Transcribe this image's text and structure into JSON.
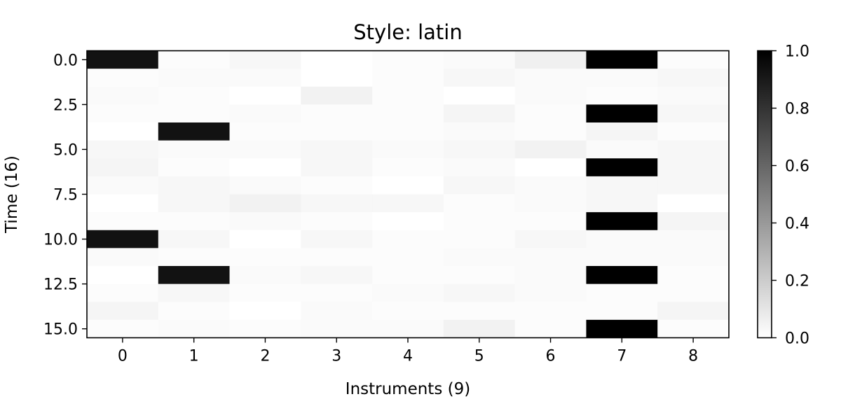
{
  "chart_data": {
    "type": "heatmap",
    "title": "Style: latin",
    "xlabel": "Instruments (9)",
    "ylabel": "Time (16)",
    "x_ticks": [
      "0",
      "1",
      "2",
      "3",
      "4",
      "5",
      "6",
      "7",
      "8"
    ],
    "y_ticks": [
      "0.0",
      "2.5",
      "5.0",
      "7.5",
      "10.0",
      "12.5",
      "15.0"
    ],
    "y_tick_values": [
      0,
      2.5,
      5,
      7.5,
      10,
      12.5,
      15
    ],
    "colorbar": {
      "cmap": "gray_r",
      "vmin": 0.0,
      "vmax": 1.0,
      "ticks": [
        "0.0",
        "0.2",
        "0.4",
        "0.6",
        "0.8",
        "1.0"
      ],
      "tick_values": [
        0,
        0.2,
        0.4,
        0.6,
        0.8,
        1.0
      ]
    },
    "rows": 16,
    "cols": 9,
    "values": [
      [
        0.93,
        0.01,
        0.03,
        0.0,
        0.01,
        0.02,
        0.06,
        1.0,
        0.01
      ],
      [
        0.01,
        0.02,
        0.02,
        0.0,
        0.01,
        0.03,
        0.02,
        0.02,
        0.03
      ],
      [
        0.02,
        0.01,
        0.0,
        0.05,
        0.01,
        0.0,
        0.02,
        0.01,
        0.02
      ],
      [
        0.01,
        0.01,
        0.02,
        0.01,
        0.01,
        0.04,
        0.01,
        1.0,
        0.03
      ],
      [
        0.0,
        0.93,
        0.01,
        0.01,
        0.01,
        0.02,
        0.01,
        0.04,
        0.01
      ],
      [
        0.03,
        0.02,
        0.02,
        0.03,
        0.02,
        0.03,
        0.05,
        0.02,
        0.03
      ],
      [
        0.04,
        0.01,
        0.0,
        0.03,
        0.01,
        0.02,
        0.0,
        1.0,
        0.03
      ],
      [
        0.02,
        0.03,
        0.02,
        0.01,
        0.0,
        0.03,
        0.02,
        0.03,
        0.03
      ],
      [
        0.0,
        0.03,
        0.05,
        0.03,
        0.03,
        0.01,
        0.02,
        0.03,
        0.0
      ],
      [
        0.01,
        0.01,
        0.02,
        0.01,
        0.0,
        0.01,
        0.01,
        1.0,
        0.04
      ],
      [
        0.93,
        0.03,
        0.0,
        0.03,
        0.01,
        0.01,
        0.03,
        0.02,
        0.02
      ],
      [
        0.02,
        0.01,
        0.01,
        0.01,
        0.01,
        0.02,
        0.02,
        0.02,
        0.02
      ],
      [
        0.0,
        0.93,
        0.02,
        0.03,
        0.01,
        0.01,
        0.02,
        1.0,
        0.01
      ],
      [
        0.01,
        0.03,
        0.01,
        0.01,
        0.02,
        0.03,
        0.02,
        0.01,
        0.01
      ],
      [
        0.04,
        0.01,
        0.0,
        0.02,
        0.01,
        0.01,
        0.01,
        0.01,
        0.04
      ],
      [
        0.01,
        0.02,
        0.01,
        0.02,
        0.02,
        0.05,
        0.01,
        1.0,
        0.01
      ]
    ]
  }
}
